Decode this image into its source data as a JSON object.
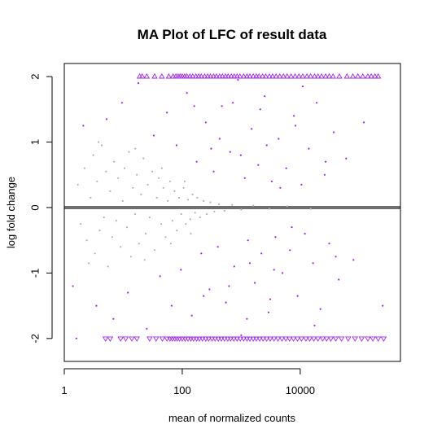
{
  "chart_data": {
    "type": "scatter",
    "title": "MA Plot of LFC of result data",
    "xlabel": "mean of normalized counts",
    "ylabel": "log fold change",
    "x_scale": "log10",
    "xlim": [
      1,
      500000
    ],
    "ylim": [
      -2.35,
      2.2
    ],
    "x_ticks": [
      {
        "value": 1,
        "label": "1"
      },
      {
        "value": 100,
        "label": "100"
      },
      {
        "value": 10000,
        "label": "10000"
      }
    ],
    "y_ticks": [
      {
        "value": -2,
        "label": "-2"
      },
      {
        "value": -1,
        "label": "-1"
      },
      {
        "value": 0,
        "label": "0"
      },
      {
        "value": 1,
        "label": "1"
      },
      {
        "value": 2,
        "label": "2"
      }
    ],
    "hline": {
      "y": 0,
      "color": "#6e6e6e"
    },
    "grid": false,
    "colors": {
      "significant": "#a020f0",
      "not_significant": "#b2b2b2"
    },
    "series": [
      {
        "color": "#b2b2b2",
        "marker": "point",
        "points": [
          [
            1.7,
            0.35
          ],
          [
            1.9,
            -0.25
          ],
          [
            2.2,
            0.6
          ],
          [
            2.4,
            -0.5
          ],
          [
            2.8,
            0.15
          ],
          [
            3.1,
            0.8
          ],
          [
            3.3,
            -0.7
          ],
          [
            3.6,
            0.4
          ],
          [
            4.0,
            -0.35
          ],
          [
            4.3,
            0.95
          ],
          [
            4.7,
            -0.15
          ],
          [
            5.1,
            0.55
          ],
          [
            5.5,
            -0.9
          ],
          [
            6.0,
            0.25
          ],
          [
            6.5,
            -0.45
          ],
          [
            7.0,
            0.7
          ],
          [
            7.6,
            -0.2
          ],
          [
            8.2,
            0.45
          ],
          [
            9.0,
            -0.6
          ],
          [
            9.8,
            0.1
          ],
          [
            10.5,
            0.6
          ],
          [
            11.5,
            -0.3
          ],
          [
            12.5,
            0.85
          ],
          [
            13.5,
            -0.75
          ],
          [
            14.5,
            0.3
          ],
          [
            15.8,
            -0.1
          ],
          [
            17.0,
            0.5
          ],
          [
            18.5,
            -0.55
          ],
          [
            20.0,
            0.2
          ],
          [
            22.0,
            0.75
          ],
          [
            24.0,
            -0.4
          ],
          [
            26.0,
            0.35
          ],
          [
            28.0,
            -0.15
          ],
          [
            31.0,
            0.55
          ],
          [
            34.0,
            -0.65
          ],
          [
            37.0,
            0.15
          ],
          [
            40.0,
            0.45
          ],
          [
            44.0,
            -0.25
          ],
          [
            48.0,
            0.3
          ],
          [
            52.0,
            -0.45
          ],
          [
            57.0,
            0.1
          ],
          [
            62.0,
            0.4
          ],
          [
            68.0,
            -0.2
          ],
          [
            74.0,
            0.25
          ],
          [
            81.0,
            -0.35
          ],
          [
            88.0,
            0.15
          ],
          [
            96.0,
            -0.1
          ],
          [
            105.0,
            0.3
          ],
          [
            115.0,
            -0.25
          ],
          [
            125.0,
            0.12
          ],
          [
            137.0,
            -0.18
          ],
          [
            150.0,
            0.2
          ],
          [
            165.0,
            -0.08
          ],
          [
            180.0,
            0.15
          ],
          [
            200.0,
            -0.15
          ],
          [
            230.0,
            0.1
          ],
          [
            260.0,
            -0.1
          ],
          [
            300.0,
            0.08
          ],
          [
            350.0,
            -0.06
          ],
          [
            420.0,
            0.05
          ],
          [
            520.0,
            -0.05
          ],
          [
            700.0,
            0.04
          ],
          [
            1000.0,
            -0.03
          ],
          [
            1600.0,
            0.03
          ],
          [
            3000.0,
            -0.02
          ],
          [
            6000.0,
            0.02
          ],
          [
            15000.0,
            -0.02
          ],
          [
            3.8,
            1.0
          ],
          [
            2.6,
            -0.85
          ],
          [
            16.0,
            0.9
          ],
          [
            23.0,
            -0.8
          ],
          [
            45.0,
            0.6
          ],
          [
            64.0,
            -0.55
          ],
          [
            110.0,
            0.4
          ],
          [
            140.0,
            -0.4
          ]
        ]
      },
      {
        "color": "#a020f0",
        "marker": "point",
        "points": [
          [
            1.4,
            -1.2
          ],
          [
            1.6,
            -2.0
          ],
          [
            2.1,
            1.25
          ],
          [
            3.5,
            -1.5
          ],
          [
            5.2,
            1.35
          ],
          [
            6.8,
            -1.7
          ],
          [
            9.5,
            1.6
          ],
          [
            12.0,
            -1.3
          ],
          [
            18.0,
            1.9
          ],
          [
            25.0,
            -1.85
          ],
          [
            33.0,
            1.1
          ],
          [
            42.0,
            -1.05
          ],
          [
            55.0,
            1.45
          ],
          [
            66.0,
            -1.5
          ],
          [
            80.0,
            0.95
          ],
          [
            95.0,
            -0.95
          ],
          [
            120.0,
            1.75
          ],
          [
            145.0,
            -1.65
          ],
          [
            175.0,
            0.7
          ],
          [
            210.0,
            -0.7
          ],
          [
            250.0,
            1.3
          ],
          [
            290.0,
            -1.25
          ],
          [
            340.0,
            0.55
          ],
          [
            400.0,
            -0.6
          ],
          [
            470.0,
            1.55
          ],
          [
            550.0,
            -1.45
          ],
          [
            650.0,
            0.85
          ],
          [
            760.0,
            -0.9
          ],
          [
            880.0,
            1.95
          ],
          [
            1000.0,
            -1.95
          ],
          [
            1150.0,
            0.45
          ],
          [
            1300.0,
            -0.5
          ],
          [
            1500.0,
            1.2
          ],
          [
            1700.0,
            -1.15
          ],
          [
            1950.0,
            0.65
          ],
          [
            2200.0,
            -0.7
          ],
          [
            2500.0,
            1.7
          ],
          [
            2900.0,
            -1.6
          ],
          [
            3300.0,
            0.4
          ],
          [
            3800.0,
            -0.45
          ],
          [
            4300.0,
            1.05
          ],
          [
            5000.0,
            -1.0
          ],
          [
            5800.0,
            0.6
          ],
          [
            6700.0,
            -0.65
          ],
          [
            7800.0,
            1.4
          ],
          [
            9000.0,
            -1.35
          ],
          [
            10500.0,
            0.35
          ],
          [
            12000.0,
            -0.4
          ],
          [
            14000.0,
            0.9
          ],
          [
            16500.0,
            -0.85
          ],
          [
            19000.0,
            1.6
          ],
          [
            22000.0,
            -1.55
          ],
          [
            26000.0,
            0.5
          ],
          [
            31000.0,
            -0.55
          ],
          [
            37000.0,
            1.15
          ],
          [
            45000.0,
            -1.1
          ],
          [
            60000.0,
            0.75
          ],
          [
            80000.0,
            -0.8
          ],
          [
            120000.0,
            1.3
          ],
          [
            250000.0,
            -1.5
          ],
          [
            430.0,
            1.05
          ],
          [
            620.0,
            -1.2
          ],
          [
            980.0,
            0.8
          ],
          [
            1400.0,
            -0.85
          ],
          [
            2100.0,
            1.5
          ],
          [
            3100.0,
            -1.4
          ],
          [
            4600.0,
            0.3
          ],
          [
            7200.0,
            -0.3
          ],
          [
            11000.0,
            1.85
          ],
          [
            17500.0,
            -1.8
          ],
          [
            27000.0,
            0.7
          ],
          [
            40000.0,
            -0.75
          ],
          [
            160.0,
            1.55
          ],
          [
            230.0,
            -1.35
          ],
          [
            310.0,
            0.9
          ],
          [
            720.0,
            1.6
          ],
          [
            1250.0,
            -1.7
          ],
          [
            2700.0,
            0.95
          ],
          [
            3600.0,
            -0.95
          ],
          [
            8300.0,
            1.25
          ]
        ]
      },
      {
        "color": "#a020f0",
        "marker": "triangle-up",
        "y": 2,
        "x": [
          19,
          21,
          25,
          34,
          45,
          59,
          70,
          78,
          85,
          92,
          100,
          110,
          120,
          135,
          150,
          170,
          190,
          210,
          240,
          270,
          300,
          340,
          380,
          430,
          480,
          540,
          600,
          680,
          760,
          850,
          950,
          1100,
          1250,
          1400,
          1600,
          1800,
          2000,
          2300,
          2600,
          3000,
          3400,
          3900,
          4500,
          5200,
          6000,
          7000,
          8200,
          9500,
          11000,
          13000,
          15000,
          17500,
          20000,
          23000,
          27000,
          31000,
          36000,
          46000,
          62000,
          78000,
          95000,
          115000,
          140000,
          160000,
          185000,
          210000
        ]
      },
      {
        "color": "#a020f0",
        "marker": "triangle-down",
        "y": -2,
        "x": [
          5,
          6,
          9,
          11,
          14,
          17,
          28,
          36,
          46,
          55,
          62,
          68,
          75,
          82,
          90,
          100,
          112,
          125,
          140,
          155,
          175,
          195,
          220,
          250,
          280,
          320,
          360,
          410,
          460,
          520,
          590,
          660,
          750,
          850,
          960,
          1100,
          1250,
          1400,
          1600,
          1800,
          2050,
          2350,
          2700,
          3100,
          3600,
          4200,
          4900,
          5700,
          6600,
          7700,
          9000,
          10500,
          12500,
          14500,
          17000,
          20000,
          24000,
          28000,
          33000,
          40000,
          50000,
          65000,
          85000,
          110000,
          140000,
          170000,
          210000,
          260000
        ]
      }
    ]
  }
}
